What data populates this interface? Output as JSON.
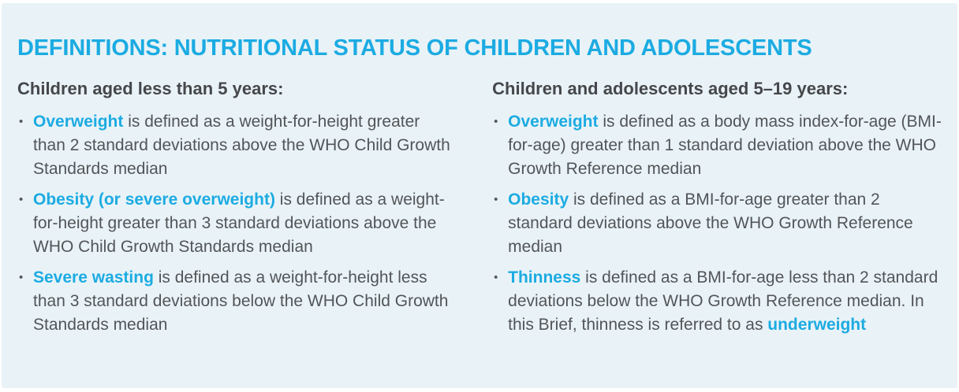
{
  "panel": {
    "title": "DEFINITIONS: NUTRITIONAL STATUS OF CHILDREN AND ADOLESCENTS",
    "bullet_glyph": "•",
    "colors": {
      "background": "#e9f3f7",
      "accent": "#1cabe2",
      "heading_text": "#45474a",
      "body_text": "#525558"
    },
    "columns": [
      {
        "heading": "Children aged less than 5 years:",
        "items": [
          {
            "segments": [
              {
                "style": "term",
                "text": "Overweight"
              },
              {
                "style": "normal",
                "text": " is defined as a weight-for-height greater than 2 standard deviations above the WHO Child Growth Standards median"
              }
            ]
          },
          {
            "segments": [
              {
                "style": "term",
                "text": "Obesity (or severe overweight)"
              },
              {
                "style": "normal",
                "text": " is defined as a weight-for-height greater than 3 standard deviations above the WHO Child Growth Standards median"
              }
            ]
          },
          {
            "segments": [
              {
                "style": "term",
                "text": "Severe wasting"
              },
              {
                "style": "normal",
                "text": " is defined as a weight-for-height less than 3 standard deviations below the WHO Child Growth Standards median"
              }
            ]
          }
        ]
      },
      {
        "heading": "Children and adolescents aged 5–19 years:",
        "items": [
          {
            "segments": [
              {
                "style": "term",
                "text": "Overweight"
              },
              {
                "style": "normal",
                "text": " is defined as a body mass index-for-age (BMI-for-age) greater than 1 standard deviation above the WHO Growth Reference median"
              }
            ]
          },
          {
            "segments": [
              {
                "style": "term",
                "text": "Obesity"
              },
              {
                "style": "normal",
                "text": " is defined as a BMI-for-age greater than 2 standard deviations above the WHO Growth Reference median"
              }
            ]
          },
          {
            "segments": [
              {
                "style": "term",
                "text": "Thinness"
              },
              {
                "style": "normal",
                "text": " is defined as a BMI-for-age less than 2 standard deviations below the WHO Growth Reference median. In this Brief, thinness is referred to as "
              },
              {
                "style": "term",
                "text": "underweight"
              }
            ]
          }
        ]
      }
    ]
  }
}
